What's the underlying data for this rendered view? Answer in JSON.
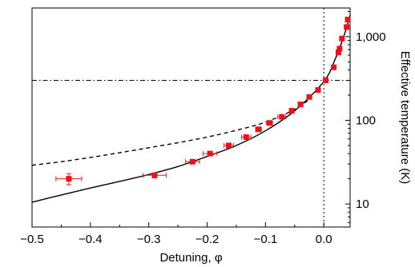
{
  "chart_data": {
    "type": "scatter",
    "title": "",
    "xlabel": "Detuning, φ",
    "ylabel": "Effective temperature (K)",
    "x_ticks": [
      "−0.5",
      "−0.4",
      "−0.3",
      "−0.2",
      "−0.1",
      "0.0"
    ],
    "x_tick_values": [
      -0.5,
      -0.4,
      -0.3,
      -0.2,
      -0.1,
      0.0
    ],
    "y_ticks": [
      "10",
      "100",
      "1,000"
    ],
    "y_tick_values": [
      10,
      100,
      1000
    ],
    "xlim": [
      -0.5,
      0.045
    ],
    "ylim": [
      5.3,
      2200
    ],
    "y_scale": "log",
    "y_axis_side": "right",
    "grid": false,
    "colors": {
      "points": "#e8141c",
      "solid_curve": "#000000",
      "dashed_curve": "#000000",
      "reference_lines": "#000000"
    },
    "reference_lines": {
      "vertical_x": 0.0,
      "horizontal_y": 300
    },
    "series": [
      {
        "style": "red-square-markers-with-error-bars",
        "points": [
          {
            "x": -0.437,
            "y": 20,
            "xerr": 0.022,
            "yerr": 3
          },
          {
            "x": -0.29,
            "y": 22,
            "xerr": 0.02,
            "yerr": 1.5
          },
          {
            "x": -0.225,
            "y": 32,
            "xerr": 0.012,
            "yerr": 1.5
          },
          {
            "x": -0.195,
            "y": 40,
            "xerr": 0.012,
            "yerr": 2
          },
          {
            "x": -0.163,
            "y": 50,
            "xerr": 0.008,
            "yerr": 2
          },
          {
            "x": -0.133,
            "y": 63,
            "xerr": 0.008,
            "yerr": 2
          },
          {
            "x": -0.112,
            "y": 78,
            "xerr": 0.005,
            "yerr": 3
          },
          {
            "x": -0.093,
            "y": 93,
            "xerr": 0.005,
            "yerr": 3
          },
          {
            "x": -0.072,
            "y": 110,
            "xerr": 0.007,
            "yerr": 4
          },
          {
            "x": -0.055,
            "y": 130,
            "xerr": 0.004,
            "yerr": 4
          },
          {
            "x": -0.04,
            "y": 155,
            "xerr": 0.004,
            "yerr": 5
          },
          {
            "x": -0.025,
            "y": 190,
            "xerr": 0.004,
            "yerr": 6
          },
          {
            "x": -0.01,
            "y": 230,
            "xerr": 0.004,
            "yerr": 8
          },
          {
            "x": 0.003,
            "y": 300,
            "xerr": 0.003,
            "yerr": 10
          },
          {
            "x": 0.017,
            "y": 430,
            "xerr": 0.003,
            "yerr": 15
          },
          {
            "x": 0.025,
            "y": 650,
            "xerr": 0.003,
            "yerr": 20
          },
          {
            "x": 0.027,
            "y": 720,
            "xerr": 0.003,
            "yerr": 30
          },
          {
            "x": 0.031,
            "y": 950,
            "xerr": 0.003,
            "yerr": 40
          },
          {
            "x": 0.039,
            "y": 1300,
            "xerr": 0.003,
            "yerr": 50
          },
          {
            "x": 0.041,
            "y": 1600,
            "xerr": 0.003,
            "yerr": 70
          }
        ]
      },
      {
        "style": "solid-curve",
        "x": [
          -0.5,
          -0.45,
          -0.4,
          -0.35,
          -0.3,
          -0.25,
          -0.2,
          -0.15,
          -0.1,
          -0.05,
          0.0,
          0.02,
          0.035,
          0.045
        ],
        "y": [
          10.5,
          12.8,
          15.5,
          18.6,
          22.5,
          28,
          37,
          50,
          75,
          130,
          290,
          550,
          1050,
          1800
        ]
      },
      {
        "style": "dashed-curve",
        "x": [
          -0.5,
          -0.45,
          -0.4,
          -0.35,
          -0.3,
          -0.25,
          -0.2,
          -0.15,
          -0.1,
          -0.05,
          -0.02
        ],
        "y": [
          29,
          32,
          36,
          41,
          47,
          54,
          63,
          76,
          95,
          135,
          190
        ]
      }
    ]
  }
}
